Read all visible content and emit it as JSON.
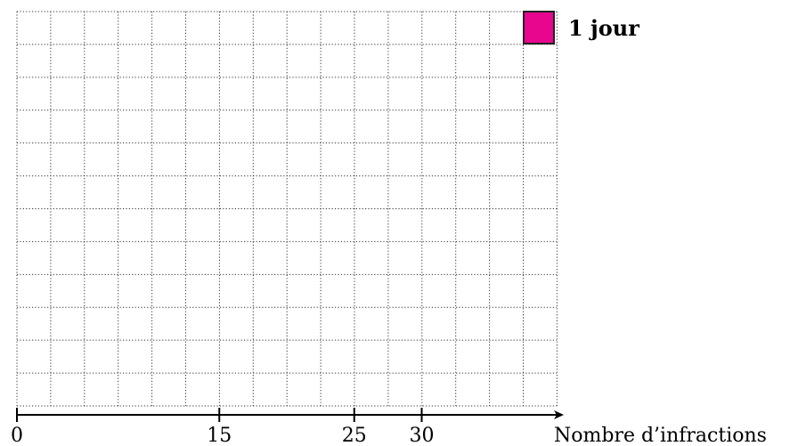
{
  "legend": {
    "label": "1 jour",
    "color": "#e8068f"
  },
  "axis": {
    "label": "Nombre d’infractions",
    "tick_labels": [
      "0",
      "15",
      "25",
      "30"
    ]
  },
  "chart_data": {
    "type": "histogram",
    "title": "",
    "xlabel": "Nombre d’infractions",
    "xticks": [
      0,
      15,
      25,
      30
    ],
    "xlim": [
      0,
      40
    ],
    "grid": true,
    "legend_placement": "top-right",
    "series": []
  }
}
